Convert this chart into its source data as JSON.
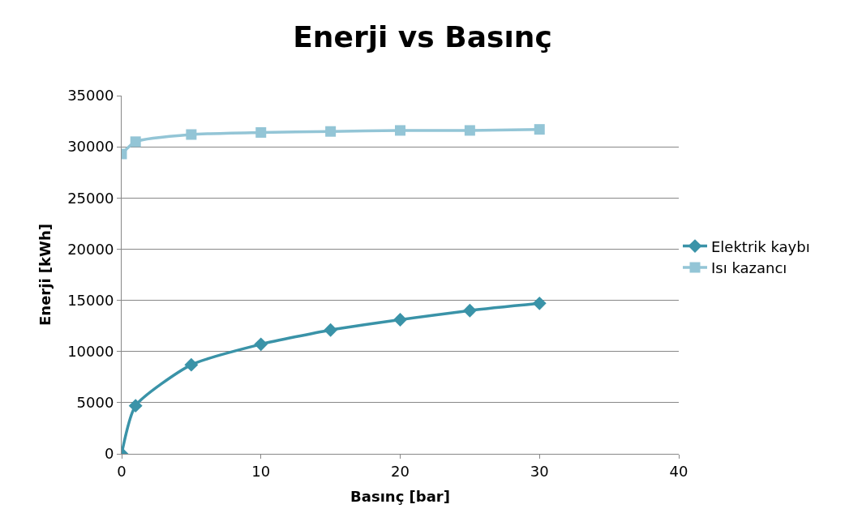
{
  "chart_data": {
    "type": "line",
    "title": "Enerji vs Basınç",
    "xlabel": "Basınç [bar]",
    "ylabel": "Enerji [kWh]",
    "x": [
      0,
      1,
      5,
      10,
      15,
      20,
      25,
      30
    ],
    "series": [
      {
        "name": "Elektrik kaybı",
        "color": "#3a93a8",
        "marker": "diamond",
        "values": [
          0,
          4700,
          8700,
          10700,
          12100,
          13100,
          14000,
          14700
        ]
      },
      {
        "name": "Isı kazancı",
        "color": "#93c5d6",
        "marker": "square",
        "values": [
          29300,
          30500,
          31200,
          31400,
          31500,
          31600,
          31600,
          31700
        ]
      }
    ],
    "xlim": [
      0,
      40
    ],
    "xticks": [
      0,
      10,
      20,
      30,
      40
    ],
    "ylim": [
      0,
      35000
    ],
    "yticks": [
      0,
      5000,
      10000,
      15000,
      20000,
      25000,
      30000,
      35000
    ],
    "grid": "y",
    "legend": "right",
    "line_style": "solid"
  }
}
